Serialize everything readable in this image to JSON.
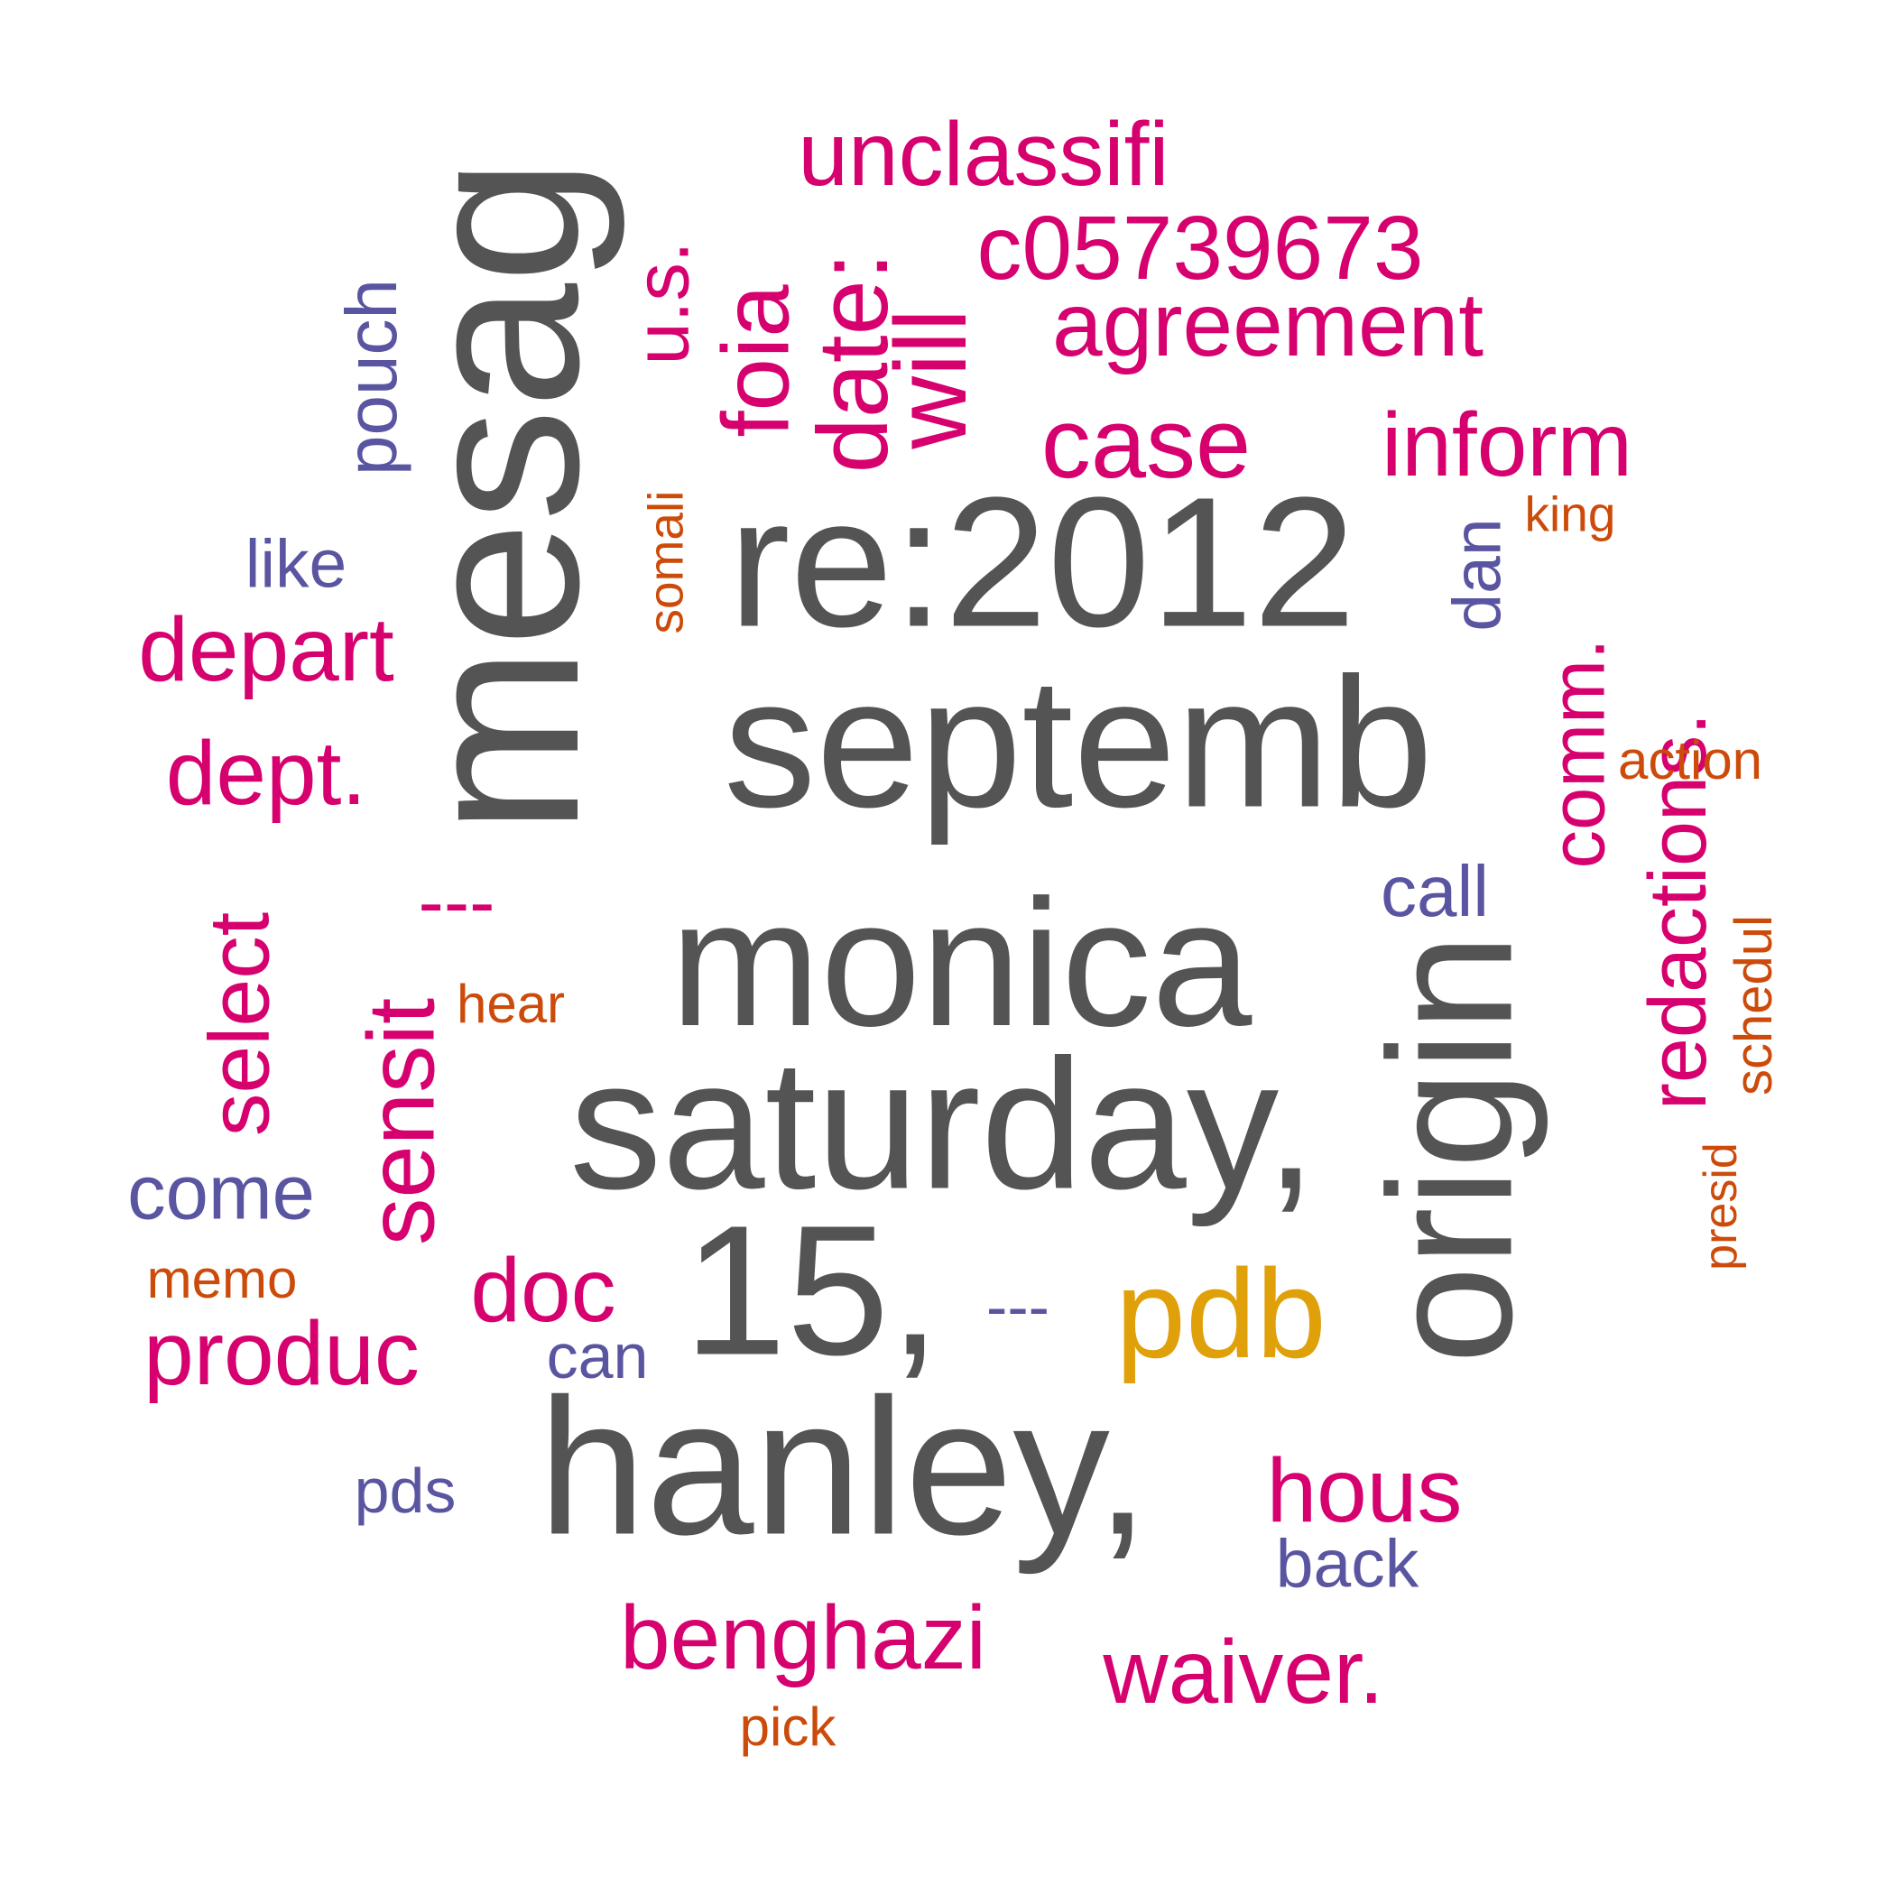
{
  "palette": {
    "gray": "#545454",
    "magenta": "#d6006e",
    "slate": "#5a55a0",
    "orange": "#cc4b0a",
    "gold": "#dfa00a"
  },
  "words": [
    {
      "text": "mesag",
      "color": "gray",
      "rotated": true
    },
    {
      "text": "re:2012",
      "color": "gray",
      "rotated": false
    },
    {
      "text": "septemb",
      "color": "gray",
      "rotated": false
    },
    {
      "text": "monica",
      "color": "gray",
      "rotated": false
    },
    {
      "text": "saturday,",
      "color": "gray",
      "rotated": false
    },
    {
      "text": "origin",
      "color": "gray",
      "rotated": true
    },
    {
      "text": "15,",
      "color": "gray",
      "rotated": false
    },
    {
      "text": "hanley,",
      "color": "gray",
      "rotated": false
    },
    {
      "text": "pdb",
      "color": "gold",
      "rotated": false
    },
    {
      "text": "unclassifi",
      "color": "magenta",
      "rotated": false
    },
    {
      "text": "c05739673",
      "color": "magenta",
      "rotated": false
    },
    {
      "text": "agreement",
      "color": "magenta",
      "rotated": false
    },
    {
      "text": "case",
      "color": "magenta",
      "rotated": false
    },
    {
      "text": "inform",
      "color": "magenta",
      "rotated": false
    },
    {
      "text": "will",
      "color": "magenta",
      "rotated": true
    },
    {
      "text": "date:",
      "color": "magenta",
      "rotated": true
    },
    {
      "text": "foia",
      "color": "magenta",
      "rotated": true
    },
    {
      "text": "u.s.",
      "color": "magenta",
      "rotated": true
    },
    {
      "text": "comm.",
      "color": "magenta",
      "rotated": true
    },
    {
      "text": "redactions.",
      "color": "magenta",
      "rotated": true
    },
    {
      "text": "depart",
      "color": "magenta",
      "rotated": false
    },
    {
      "text": "dept.",
      "color": "magenta",
      "rotated": false
    },
    {
      "text": "---",
      "color": "magenta",
      "rotated": false
    },
    {
      "text": "sensit",
      "color": "magenta",
      "rotated": true
    },
    {
      "text": "select",
      "color": "magenta",
      "rotated": true
    },
    {
      "text": "doc",
      "color": "magenta",
      "rotated": false
    },
    {
      "text": "produc",
      "color": "magenta",
      "rotated": false
    },
    {
      "text": "hous",
      "color": "magenta",
      "rotated": false
    },
    {
      "text": "benghazi",
      "color": "magenta",
      "rotated": false
    },
    {
      "text": "waiver.",
      "color": "magenta",
      "rotated": false
    },
    {
      "text": "pouch",
      "color": "slate",
      "rotated": true
    },
    {
      "text": "like",
      "color": "slate",
      "rotated": false
    },
    {
      "text": "dan",
      "color": "slate",
      "rotated": true
    },
    {
      "text": "call",
      "color": "slate",
      "rotated": false
    },
    {
      "text": "come",
      "color": "slate",
      "rotated": false
    },
    {
      "text": "---",
      "color": "slate",
      "rotated": false
    },
    {
      "text": "can",
      "color": "slate",
      "rotated": false
    },
    {
      "text": "pds",
      "color": "slate",
      "rotated": false
    },
    {
      "text": "back",
      "color": "slate",
      "rotated": false
    },
    {
      "text": "somali",
      "color": "orange",
      "rotated": true
    },
    {
      "text": "king",
      "color": "orange",
      "rotated": false
    },
    {
      "text": "action",
      "color": "orange",
      "rotated": false
    },
    {
      "text": "schedul",
      "color": "orange",
      "rotated": true
    },
    {
      "text": "presid",
      "color": "orange",
      "rotated": true
    },
    {
      "text": "hear",
      "color": "orange",
      "rotated": false
    },
    {
      "text": "memo",
      "color": "orange",
      "rotated": false
    },
    {
      "text": "pick",
      "color": "orange",
      "rotated": false
    }
  ]
}
